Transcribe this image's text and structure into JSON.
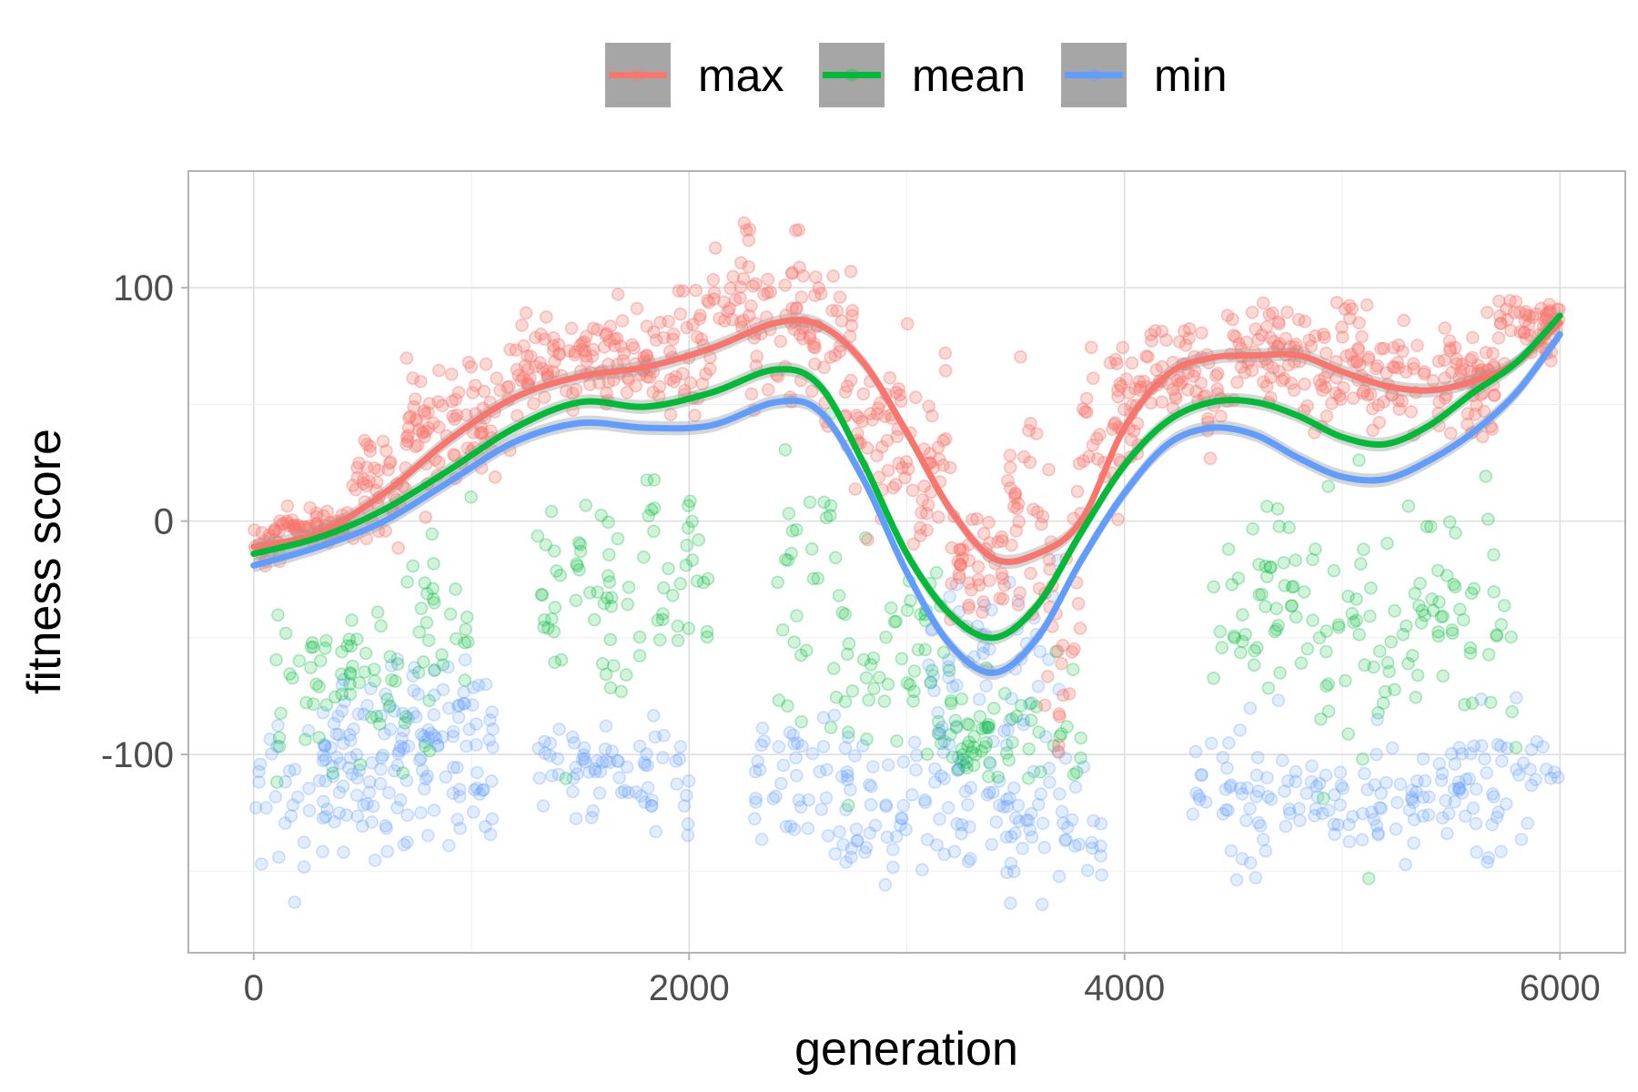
{
  "chart_data": {
    "type": "scatter",
    "xlabel": "generation",
    "ylabel": "fitness score",
    "xlim": [
      -300,
      6300
    ],
    "ylim": [
      -185,
      150
    ],
    "x_ticks": [
      0,
      2000,
      4000,
      6000
    ],
    "x_tick_labels": [
      "0",
      "2000",
      "4000",
      "6000"
    ],
    "y_ticks": [
      -100,
      0,
      100
    ],
    "y_tick_labels": [
      "-100",
      "0",
      "100"
    ],
    "grid": true,
    "legend_position": "top",
    "series": [
      {
        "name": "max",
        "color": "#F8766D",
        "smooth": [
          [
            0,
            -11
          ],
          [
            300,
            -5
          ],
          [
            600,
            12
          ],
          [
            900,
            35
          ],
          [
            1200,
            53
          ],
          [
            1500,
            62
          ],
          [
            1800,
            66
          ],
          [
            2100,
            74
          ],
          [
            2400,
            85
          ],
          [
            2600,
            84
          ],
          [
            2800,
            68
          ],
          [
            3000,
            38
          ],
          [
            3200,
            5
          ],
          [
            3400,
            -16
          ],
          [
            3600,
            -14
          ],
          [
            3800,
            0
          ],
          [
            4000,
            40
          ],
          [
            4200,
            63
          ],
          [
            4400,
            70
          ],
          [
            4600,
            71
          ],
          [
            4800,
            71
          ],
          [
            5000,
            64
          ],
          [
            5200,
            58
          ],
          [
            5400,
            56
          ],
          [
            5600,
            60
          ],
          [
            5800,
            68
          ],
          [
            6000,
            85
          ]
        ],
        "clusters": [
          [
            0,
            120,
            -8,
            4
          ],
          [
            120,
            450,
            -2,
            3
          ],
          [
            450,
            700,
            15,
            12
          ],
          [
            700,
            1200,
            42,
            15
          ],
          [
            1200,
            1800,
            68,
            10
          ],
          [
            1800,
            2100,
            72,
            12
          ],
          [
            2100,
            2600,
            92,
            18
          ],
          [
            2600,
            2750,
            75,
            20
          ],
          [
            2750,
            3000,
            42,
            18
          ],
          [
            3000,
            3200,
            28,
            25
          ],
          [
            3200,
            3450,
            -18,
            12
          ],
          [
            3450,
            3600,
            5,
            25
          ],
          [
            3600,
            3800,
            -25,
            35
          ],
          [
            3800,
            4100,
            45,
            15
          ],
          [
            4100,
            4450,
            60,
            12
          ],
          [
            4450,
            4800,
            72,
            10
          ],
          [
            4800,
            5100,
            70,
            14
          ],
          [
            5100,
            5700,
            62,
            10
          ],
          [
            5700,
            6000,
            82,
            10
          ]
        ]
      },
      {
        "name": "mean",
        "color": "#00BA38",
        "smooth": [
          [
            0,
            -14
          ],
          [
            300,
            -7
          ],
          [
            600,
            5
          ],
          [
            900,
            22
          ],
          [
            1200,
            40
          ],
          [
            1500,
            51
          ],
          [
            1800,
            49
          ],
          [
            2100,
            55
          ],
          [
            2400,
            65
          ],
          [
            2600,
            58
          ],
          [
            2800,
            25
          ],
          [
            3000,
            -14
          ],
          [
            3200,
            -40
          ],
          [
            3400,
            -50
          ],
          [
            3600,
            -36
          ],
          [
            3800,
            -5
          ],
          [
            4000,
            24
          ],
          [
            4200,
            43
          ],
          [
            4400,
            51
          ],
          [
            4600,
            51
          ],
          [
            4800,
            45
          ],
          [
            5000,
            36
          ],
          [
            5200,
            33
          ],
          [
            5400,
            41
          ],
          [
            5600,
            55
          ],
          [
            5800,
            68
          ],
          [
            6000,
            88
          ]
        ],
        "clusters": [
          [
            100,
            700,
            -65,
            20
          ],
          [
            700,
            1000,
            -45,
            25
          ],
          [
            1300,
            1800,
            -38,
            22
          ],
          [
            1800,
            2100,
            -25,
            20
          ],
          [
            2400,
            2700,
            -30,
            30
          ],
          [
            2700,
            3200,
            -55,
            25
          ],
          [
            3200,
            3800,
            -90,
            12
          ],
          [
            4400,
            4900,
            -35,
            20
          ],
          [
            4900,
            5300,
            -55,
            30
          ],
          [
            5300,
            5800,
            -40,
            25
          ]
        ]
      },
      {
        "name": "min",
        "color": "#619CFF",
        "smooth": [
          [
            0,
            -19
          ],
          [
            300,
            -11
          ],
          [
            600,
            0
          ],
          [
            900,
            17
          ],
          [
            1200,
            34
          ],
          [
            1500,
            42
          ],
          [
            1800,
            40
          ],
          [
            2100,
            41
          ],
          [
            2400,
            51
          ],
          [
            2600,
            47
          ],
          [
            2800,
            18
          ],
          [
            3000,
            -22
          ],
          [
            3200,
            -53
          ],
          [
            3400,
            -65
          ],
          [
            3600,
            -50
          ],
          [
            3800,
            -17
          ],
          [
            4000,
            12
          ],
          [
            4200,
            33
          ],
          [
            4400,
            40
          ],
          [
            4600,
            37
          ],
          [
            4800,
            27
          ],
          [
            5000,
            19
          ],
          [
            5200,
            18
          ],
          [
            5400,
            26
          ],
          [
            5600,
            38
          ],
          [
            5800,
            55
          ],
          [
            6000,
            80
          ]
        ],
        "clusters": [
          [
            0,
            600,
            -115,
            15
          ],
          [
            600,
            1100,
            -110,
            20
          ],
          [
            1300,
            2000,
            -108,
            12
          ],
          [
            2300,
            2800,
            -110,
            18
          ],
          [
            2700,
            3300,
            -125,
            20
          ],
          [
            3300,
            3900,
            -130,
            15
          ],
          [
            4300,
            4900,
            -115,
            15
          ],
          [
            4900,
            5400,
            -118,
            12
          ],
          [
            5400,
            6000,
            -115,
            15
          ],
          [
            300,
            1100,
            -90,
            15
          ],
          [
            3100,
            3700,
            -60,
            25
          ]
        ]
      }
    ]
  }
}
